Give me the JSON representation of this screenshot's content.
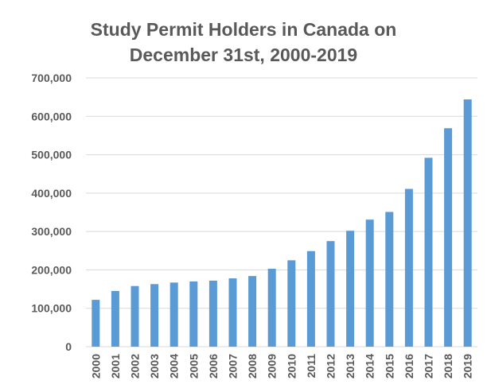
{
  "chart_data": {
    "type": "bar",
    "title_lines": [
      "Study Permit Holders in Canada on",
      "December 31st, 2000-2019"
    ],
    "categories": [
      "2000",
      "2001",
      "2002",
      "2003",
      "2004",
      "2005",
      "2006",
      "2007",
      "2008",
      "2009",
      "2010",
      "2011",
      "2012",
      "2013",
      "2014",
      "2015",
      "2016",
      "2017",
      "2018",
      "2019"
    ],
    "values": [
      122000,
      145000,
      158000,
      163000,
      167000,
      170000,
      172000,
      178000,
      184000,
      203000,
      225000,
      249000,
      275000,
      302000,
      331000,
      351000,
      411000,
      492000,
      569000,
      644000
    ],
    "ylim": [
      0,
      700000
    ],
    "yticks": [
      0,
      100000,
      200000,
      300000,
      400000,
      500000,
      600000,
      700000
    ],
    "ytick_labels": [
      "0",
      "100,000",
      "200,000",
      "300,000",
      "400,000",
      "500,000",
      "600,000",
      "700,000"
    ],
    "xlabel": "",
    "ylabel": "",
    "grid": true,
    "bar_color": "#5b9bd5",
    "grid_color": "#d9d9d9"
  }
}
